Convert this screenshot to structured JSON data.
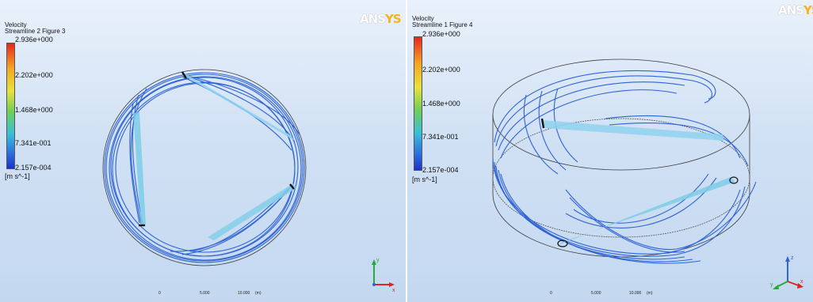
{
  "panels": [
    {
      "title_line1": "Velocity",
      "title_line2": "Streamline 2 Figure 3",
      "legend": [
        "2.936e+000",
        "2.202e+000",
        "1.468e+000",
        "7.341e-001",
        "2.157e-004"
      ],
      "unit": "[m s^-1]",
      "logo_a": "ANS",
      "logo_b": "YS",
      "scale_labels": [
        "0",
        "5.000",
        "10.000",
        "(m)"
      ],
      "axis_labels": [
        "y",
        "x"
      ]
    },
    {
      "title_line1": "Velocity",
      "title_line2": "Streamline 1 Figure 4",
      "legend": [
        "2.936e+000",
        "2.202e+000",
        "1.468e+000",
        "7.341e-001",
        "2.157e-004"
      ],
      "unit": "[m s^-1]",
      "logo_a": "ANS",
      "logo_b": "YS",
      "scale_labels": [
        "0",
        "5.000",
        "10.000",
        "(m)"
      ],
      "axis_labels": [
        "z",
        "y",
        "x"
      ]
    }
  ],
  "colors": {
    "streamline": "#2f63d6",
    "streamline_fast": "#73c7ea",
    "outline": "#3a3a3a"
  }
}
